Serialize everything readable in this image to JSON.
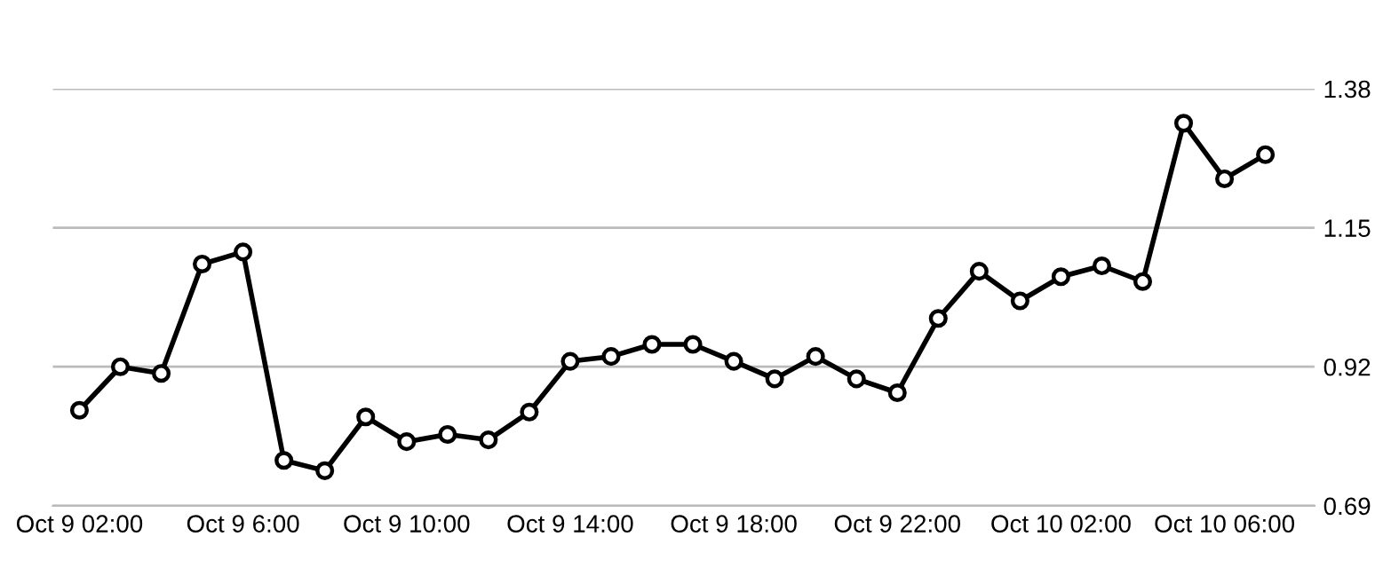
{
  "chart_data": {
    "type": "line",
    "categories": [
      "Oct 9 02:00",
      null,
      null,
      null,
      "Oct 9 6:00",
      null,
      null,
      null,
      "Oct 9 10:00",
      null,
      null,
      null,
      "Oct 9 14:00",
      null,
      null,
      null,
      "Oct 9 18:00",
      null,
      null,
      null,
      "Oct 9 22:00",
      null,
      null,
      null,
      "Oct 10 02:00",
      null,
      null,
      null,
      "Oct 10 06:00",
      null
    ],
    "series": [
      {
        "color": "#000000",
        "values": [
          0.848,
          0.92,
          0.909,
          1.09,
          1.11,
          0.765,
          0.748,
          0.837,
          0.796,
          0.808,
          0.799,
          0.845,
          0.929,
          0.937,
          0.957,
          0.957,
          0.929,
          0.9,
          0.937,
          0.9,
          0.877,
          1.0,
          1.078,
          1.029,
          1.069,
          1.087,
          1.061,
          1.323,
          1.231,
          1.271
        ]
      }
    ],
    "ylim": [
      0.69,
      1.38
    ],
    "yticks": [
      0.69,
      0.92,
      1.15,
      1.38
    ],
    "grid": "y",
    "marker": "circle",
    "line_style": "solid"
  }
}
